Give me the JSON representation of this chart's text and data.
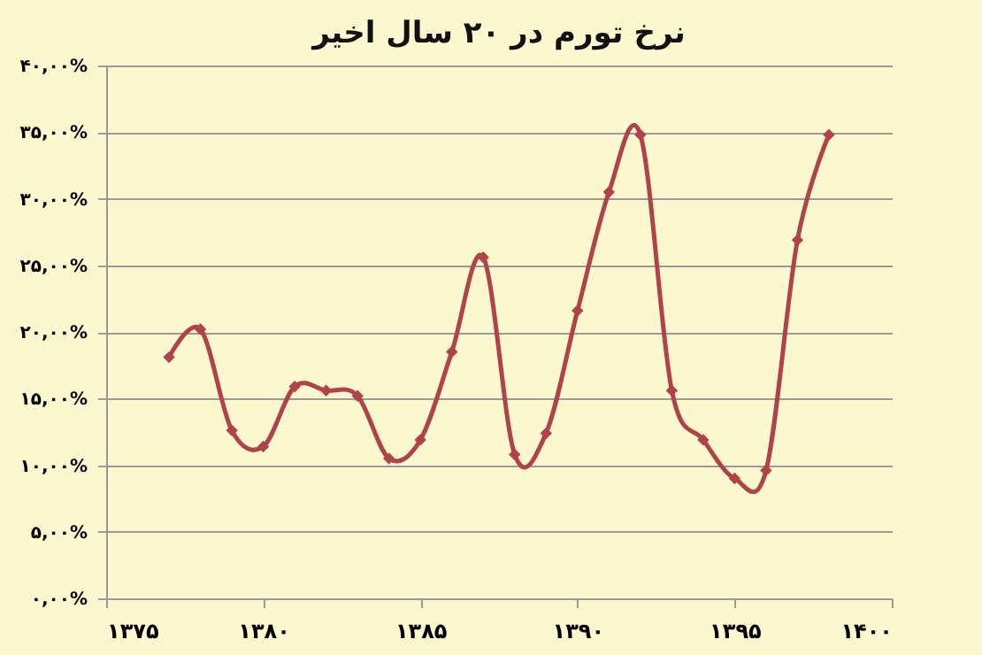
{
  "chart_data": {
    "type": "line",
    "title": "نرخ تورم در ۲۰ سال اخیر",
    "x": [
      1377,
      1378,
      1379,
      1380,
      1381,
      1382,
      1383,
      1384,
      1385,
      1386,
      1387,
      1388,
      1389,
      1390,
      1391,
      1392,
      1393,
      1394,
      1395,
      1396,
      1397,
      1398
    ],
    "series": [
      {
        "color": "#b0434a",
        "values": [
          18.1,
          20.2,
          12.6,
          11.4,
          15.9,
          15.6,
          15.2,
          10.5,
          11.9,
          18.5,
          25.6,
          10.8,
          12.4,
          21.6,
          30.5,
          34.8,
          15.6,
          11.9,
          9.0,
          9.6,
          26.9,
          34.8
        ]
      }
    ],
    "xlim": [
      1375,
      1400
    ],
    "xticks": [
      {
        "value": 1375,
        "label": "۱۳۷۵"
      },
      {
        "value": 1380,
        "label": "۱۳۸۰"
      },
      {
        "value": 1385,
        "label": "۱۳۸۵"
      },
      {
        "value": 1390,
        "label": "۱۳۹۰"
      },
      {
        "value": 1395,
        "label": "۱۳۹۵"
      },
      {
        "value": 1400,
        "label": "۱۴۰۰"
      }
    ],
    "ylim": [
      0,
      40
    ],
    "yticks": [
      {
        "value": 0,
        "label": "۰,۰۰%"
      },
      {
        "value": 5,
        "label": "۵,۰۰%"
      },
      {
        "value": 10,
        "label": "۱۰,۰۰%"
      },
      {
        "value": 15,
        "label": "۱۵,۰۰%"
      },
      {
        "value": 20,
        "label": "۲۰,۰۰%"
      },
      {
        "value": 25,
        "label": "۲۵,۰۰%"
      },
      {
        "value": 30,
        "label": "۳۰,۰۰%"
      },
      {
        "value": 35,
        "label": "۳۵,۰۰%"
      },
      {
        "value": 40,
        "label": "۴۰,۰۰%"
      }
    ],
    "grid": "y",
    "marker": "diamond",
    "line_style": "solid"
  }
}
